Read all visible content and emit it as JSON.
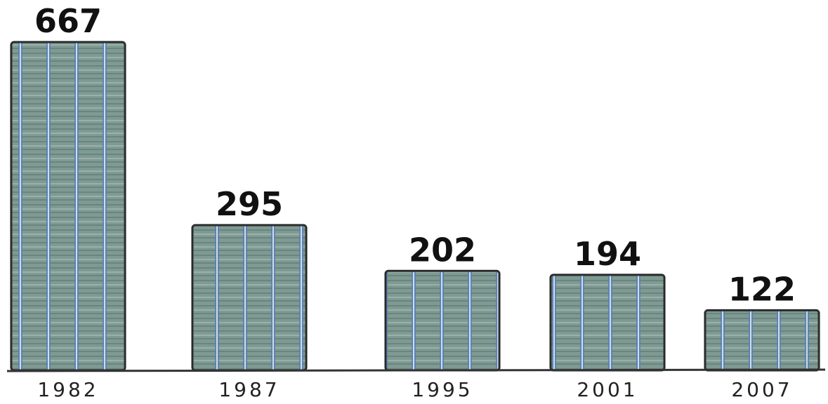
{
  "chart_data": {
    "type": "bar",
    "categories": [
      "1982",
      "1987",
      "1995",
      "2001",
      "2007"
    ],
    "values": [
      667,
      295,
      202,
      194,
      122
    ],
    "color": "#7f9a93"
  }
}
